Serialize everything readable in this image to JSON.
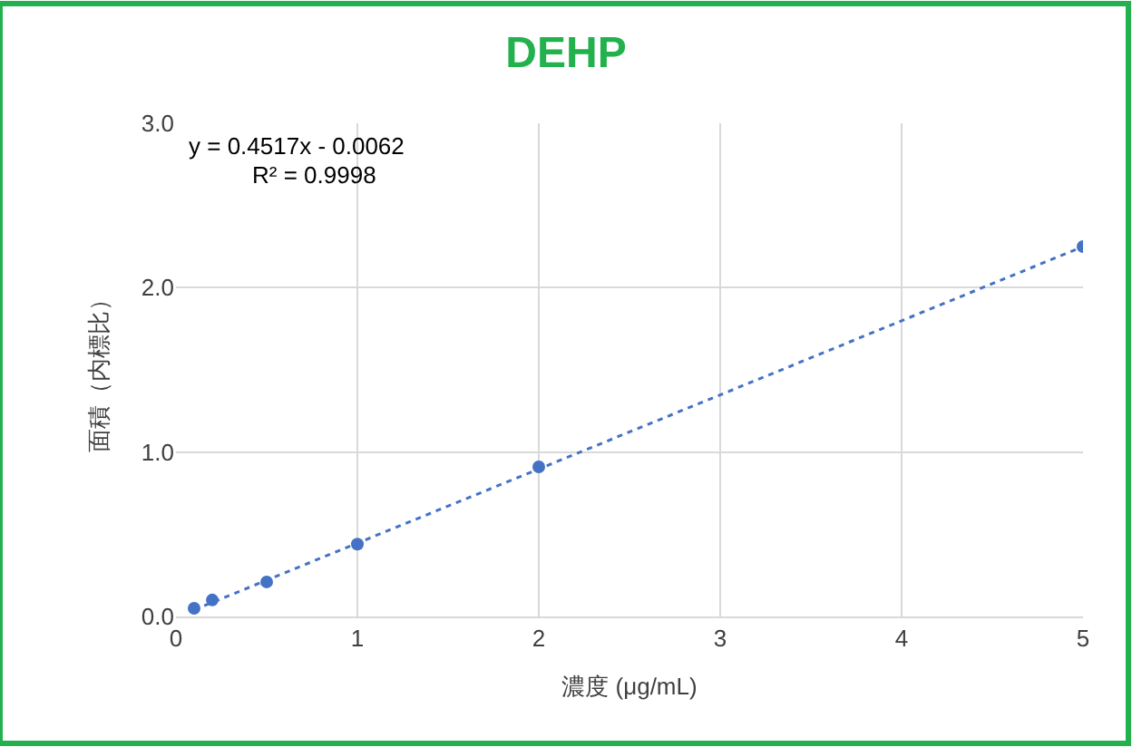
{
  "chart_data": {
    "type": "scatter",
    "title": "DEHP",
    "xlabel": "濃度 (μg/mL)",
    "ylabel": "面積（内標比）",
    "annotations": [
      "y = 0.4517x - 0.0062",
      "R² = 0.9998"
    ],
    "series": [
      {
        "color": "#4472c4",
        "marker": "circle",
        "x": [
          0.1,
          0.2,
          0.5,
          1,
          2,
          5
        ],
        "values": [
          0.05,
          0.1,
          0.21,
          0.44,
          0.91,
          2.25
        ]
      },
      {
        "type": "line",
        "color": "#4472c4",
        "line_style": "dotted",
        "x": [
          0.1,
          5
        ],
        "values": [
          0.04,
          2.25
        ]
      }
    ],
    "xlim": [
      0,
      5
    ],
    "xticks": [
      0,
      1,
      2,
      3,
      4,
      5
    ],
    "ylim": [
      0,
      3
    ],
    "yticks": [
      {
        "value": 0,
        "label": "0.0"
      },
      {
        "value": 1,
        "label": "1.0"
      },
      {
        "value": 2,
        "label": "2.0"
      },
      {
        "value": 3,
        "label": "3.0"
      }
    ],
    "grid": true
  }
}
